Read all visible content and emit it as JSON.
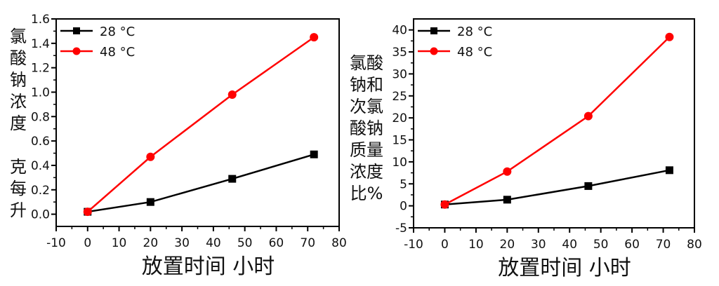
{
  "chart_data": [
    {
      "type": "line",
      "xlabel": "放置时间 小时",
      "ylabel_lines": [
        "氯",
        "酸",
        "钠",
        "浓",
        "度",
        "",
        "克",
        "每",
        "升"
      ],
      "xlim": [
        -10,
        80
      ],
      "ylim": [
        -0.1,
        1.6
      ],
      "xticks": [
        -10,
        0,
        10,
        20,
        30,
        40,
        50,
        60,
        70,
        80
      ],
      "yticks": [
        "0.0",
        "0.2",
        "0.4",
        "0.6",
        "0.8",
        "1.0",
        "1.2",
        "1.4",
        "1.6"
      ],
      "legend": "top-left",
      "grid": false,
      "x": [
        0,
        20,
        46,
        72
      ],
      "series": [
        {
          "name": "28 °C",
          "color": "#000000",
          "marker": "square",
          "values": [
            0.02,
            0.1,
            0.29,
            0.49
          ]
        },
        {
          "name": "48 °C",
          "color": "#ff0000",
          "marker": "circle",
          "values": [
            0.02,
            0.47,
            0.98,
            1.45
          ]
        }
      ]
    },
    {
      "type": "line",
      "xlabel": "放置时间 小时",
      "ylabel_lines": [
        "氯酸",
        "钠和",
        "次氯",
        "酸钠",
        "质量",
        "浓度",
        "比%"
      ],
      "xlim": [
        -10,
        80
      ],
      "ylim": [
        -5,
        42.5
      ],
      "xticks": [
        -10,
        0,
        10,
        20,
        30,
        40,
        50,
        60,
        70,
        80
      ],
      "yticks": [
        "-5",
        "0",
        "5",
        "10",
        "15",
        "20",
        "25",
        "30",
        "35",
        "40"
      ],
      "legend": "top-left",
      "grid": false,
      "x": [
        0,
        20,
        46,
        72
      ],
      "series": [
        {
          "name": "28 °C",
          "color": "#000000",
          "marker": "square",
          "values": [
            0.3,
            1.4,
            4.5,
            8.1
          ]
        },
        {
          "name": "48 °C",
          "color": "#ff0000",
          "marker": "circle",
          "values": [
            0.3,
            7.8,
            20.4,
            38.4
          ]
        }
      ]
    }
  ]
}
